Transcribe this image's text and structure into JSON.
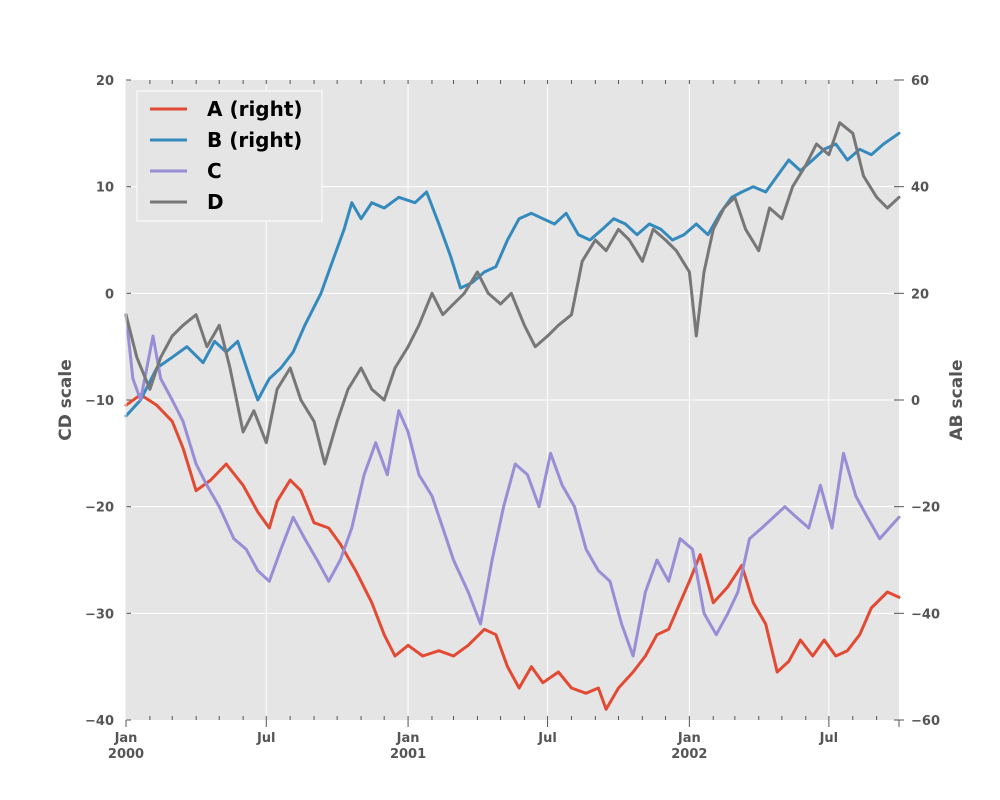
{
  "chart_data": {
    "type": "line",
    "x_start": "2000-01-01",
    "x_end": "2002-09-30",
    "xlim": [
      "2000-01-01",
      "2002-09-30"
    ],
    "x_ticks": [
      {
        "date": "2000-01-01",
        "line1": "Jan",
        "line2": "2000"
      },
      {
        "date": "2000-07-01",
        "line1": "Jul",
        "line2": ""
      },
      {
        "date": "2001-01-01",
        "line1": "Jan",
        "line2": "2001"
      },
      {
        "date": "2001-07-01",
        "line1": "Jul",
        "line2": ""
      },
      {
        "date": "2002-01-01",
        "line1": "Jan",
        "line2": "2002"
      },
      {
        "date": "2002-07-01",
        "line1": "Jul",
        "line2": ""
      }
    ],
    "y_left": {
      "label": "CD scale",
      "lim": [
        -40,
        20
      ],
      "ticks": [
        "−40",
        "−30",
        "−20",
        "−10",
        "0",
        "10",
        "20"
      ]
    },
    "y_right": {
      "label": "AB scale",
      "lim": [
        -60,
        60
      ],
      "ticks": [
        "−60",
        "−40",
        "−20",
        "0",
        "20",
        "40",
        "60"
      ]
    },
    "grid": true,
    "legend": {
      "placement": "top-left"
    },
    "series": [
      {
        "name": "A (right)",
        "axis": "right",
        "color": "#E24A33",
        "points": [
          [
            "2000-01-01",
            -1
          ],
          [
            "2000-01-20",
            1
          ],
          [
            "2000-02-10",
            -1
          ],
          [
            "2000-03-01",
            -4
          ],
          [
            "2000-03-15",
            -9
          ],
          [
            "2000-04-01",
            -17
          ],
          [
            "2000-04-20",
            -15
          ],
          [
            "2000-05-10",
            -12
          ],
          [
            "2000-06-01",
            -16
          ],
          [
            "2000-06-20",
            -21
          ],
          [
            "2000-07-05",
            -24
          ],
          [
            "2000-07-15",
            -19
          ],
          [
            "2000-08-01",
            -15
          ],
          [
            "2000-08-15",
            -17
          ],
          [
            "2000-09-01",
            -23
          ],
          [
            "2000-09-20",
            -24
          ],
          [
            "2000-10-05",
            -27
          ],
          [
            "2000-10-25",
            -32
          ],
          [
            "2000-11-15",
            -38
          ],
          [
            "2000-12-01",
            -44
          ],
          [
            "2000-12-15",
            -48
          ],
          [
            "2001-01-01",
            -46
          ],
          [
            "2001-01-20",
            -48
          ],
          [
            "2001-02-10",
            -47
          ],
          [
            "2001-03-01",
            -48
          ],
          [
            "2001-03-20",
            -46
          ],
          [
            "2001-04-10",
            -43
          ],
          [
            "2001-04-25",
            -44
          ],
          [
            "2001-05-10",
            -50
          ],
          [
            "2001-05-25",
            -54
          ],
          [
            "2001-06-10",
            -50
          ],
          [
            "2001-06-25",
            -53
          ],
          [
            "2001-07-15",
            -51
          ],
          [
            "2001-08-01",
            -54
          ],
          [
            "2001-08-20",
            -55
          ],
          [
            "2001-09-05",
            -54
          ],
          [
            "2001-09-15",
            -58
          ],
          [
            "2001-10-01",
            -54
          ],
          [
            "2001-10-20",
            -51
          ],
          [
            "2001-11-05",
            -48
          ],
          [
            "2001-11-20",
            -44
          ],
          [
            "2001-12-05",
            -43
          ],
          [
            "2001-12-20",
            -38
          ],
          [
            "2002-01-01",
            -34
          ],
          [
            "2002-01-15",
            -29
          ],
          [
            "2002-02-01",
            -38
          ],
          [
            "2002-02-20",
            -35
          ],
          [
            "2002-03-10",
            -31
          ],
          [
            "2002-03-25",
            -38
          ],
          [
            "2002-04-10",
            -42
          ],
          [
            "2002-04-25",
            -51
          ],
          [
            "2002-05-10",
            -49
          ],
          [
            "2002-05-25",
            -45
          ],
          [
            "2002-06-10",
            -48
          ],
          [
            "2002-06-25",
            -45
          ],
          [
            "2002-07-10",
            -48
          ],
          [
            "2002-07-25",
            -47
          ],
          [
            "2002-08-10",
            -44
          ],
          [
            "2002-08-25",
            -39
          ],
          [
            "2002-09-15",
            -36
          ],
          [
            "2002-09-30",
            -37
          ]
        ]
      },
      {
        "name": "B (right)",
        "axis": "right",
        "color": "#348ABD",
        "points": [
          [
            "2000-01-01",
            -3
          ],
          [
            "2000-01-20",
            0
          ],
          [
            "2000-02-10",
            6
          ],
          [
            "2000-03-01",
            8
          ],
          [
            "2000-03-20",
            10
          ],
          [
            "2000-04-10",
            7
          ],
          [
            "2000-04-25",
            11
          ],
          [
            "2000-05-10",
            9
          ],
          [
            "2000-05-25",
            11
          ],
          [
            "2000-06-10",
            4
          ],
          [
            "2000-06-20",
            0
          ],
          [
            "2000-07-05",
            4
          ],
          [
            "2000-07-20",
            6
          ],
          [
            "2000-08-05",
            9
          ],
          [
            "2000-08-20",
            14
          ],
          [
            "2000-09-10",
            20
          ],
          [
            "2000-09-25",
            26
          ],
          [
            "2000-10-10",
            32
          ],
          [
            "2000-10-20",
            37
          ],
          [
            "2000-11-01",
            34
          ],
          [
            "2000-11-15",
            37
          ],
          [
            "2000-12-01",
            36
          ],
          [
            "2000-12-20",
            38
          ],
          [
            "2001-01-10",
            37
          ],
          [
            "2001-01-25",
            39
          ],
          [
            "2001-02-10",
            33
          ],
          [
            "2001-02-25",
            27
          ],
          [
            "2001-03-10",
            21
          ],
          [
            "2001-03-25",
            22
          ],
          [
            "2001-04-10",
            24
          ],
          [
            "2001-04-25",
            25
          ],
          [
            "2001-05-10",
            30
          ],
          [
            "2001-05-25",
            34
          ],
          [
            "2001-06-10",
            35
          ],
          [
            "2001-06-25",
            34
          ],
          [
            "2001-07-10",
            33
          ],
          [
            "2001-07-25",
            35
          ],
          [
            "2001-08-10",
            31
          ],
          [
            "2001-08-25",
            30
          ],
          [
            "2001-09-10",
            32
          ],
          [
            "2001-09-25",
            34
          ],
          [
            "2001-10-10",
            33
          ],
          [
            "2001-10-25",
            31
          ],
          [
            "2001-11-10",
            33
          ],
          [
            "2001-11-25",
            32
          ],
          [
            "2001-12-10",
            30
          ],
          [
            "2001-12-25",
            31
          ],
          [
            "2002-01-10",
            33
          ],
          [
            "2002-01-25",
            31
          ],
          [
            "2002-02-10",
            35
          ],
          [
            "2002-02-25",
            38
          ],
          [
            "2002-03-10",
            39
          ],
          [
            "2002-03-25",
            40
          ],
          [
            "2002-04-10",
            39
          ],
          [
            "2002-04-25",
            42
          ],
          [
            "2002-05-10",
            45
          ],
          [
            "2002-05-25",
            43
          ],
          [
            "2002-06-10",
            45
          ],
          [
            "2002-06-25",
            47
          ],
          [
            "2002-07-10",
            48
          ],
          [
            "2002-07-25",
            45
          ],
          [
            "2002-08-10",
            47
          ],
          [
            "2002-08-25",
            46
          ],
          [
            "2002-09-10",
            48
          ],
          [
            "2002-09-30",
            50
          ]
        ]
      },
      {
        "name": "C",
        "axis": "left",
        "color": "#988ED5",
        "points": [
          [
            "2000-01-01",
            -2
          ],
          [
            "2000-01-10",
            -8
          ],
          [
            "2000-01-20",
            -10
          ],
          [
            "2000-02-05",
            -4
          ],
          [
            "2000-02-15",
            -8
          ],
          [
            "2000-03-01",
            -10
          ],
          [
            "2000-03-15",
            -12
          ],
          [
            "2000-04-01",
            -16
          ],
          [
            "2000-04-15",
            -18
          ],
          [
            "2000-05-01",
            -20
          ],
          [
            "2000-05-20",
            -23
          ],
          [
            "2000-06-05",
            -24
          ],
          [
            "2000-06-20",
            -26
          ],
          [
            "2000-07-05",
            -27
          ],
          [
            "2000-07-20",
            -24
          ],
          [
            "2000-08-05",
            -21
          ],
          [
            "2000-08-20",
            -23
          ],
          [
            "2000-09-05",
            -25
          ],
          [
            "2000-09-20",
            -27
          ],
          [
            "2000-10-05",
            -25
          ],
          [
            "2000-10-20",
            -22
          ],
          [
            "2000-11-05",
            -17
          ],
          [
            "2000-11-20",
            -14
          ],
          [
            "2000-12-05",
            -17
          ],
          [
            "2000-12-20",
            -11
          ],
          [
            "2001-01-01",
            -13
          ],
          [
            "2001-01-15",
            -17
          ],
          [
            "2001-02-01",
            -19
          ],
          [
            "2001-02-15",
            -22
          ],
          [
            "2001-03-01",
            -25
          ],
          [
            "2001-03-20",
            -28
          ],
          [
            "2001-04-05",
            -31
          ],
          [
            "2001-04-20",
            -25
          ],
          [
            "2001-05-05",
            -20
          ],
          [
            "2001-05-20",
            -16
          ],
          [
            "2001-06-05",
            -17
          ],
          [
            "2001-06-20",
            -20
          ],
          [
            "2001-07-05",
            -15
          ],
          [
            "2001-07-20",
            -18
          ],
          [
            "2001-08-05",
            -20
          ],
          [
            "2001-08-20",
            -24
          ],
          [
            "2001-09-05",
            -26
          ],
          [
            "2001-09-20",
            -27
          ],
          [
            "2001-10-05",
            -31
          ],
          [
            "2001-10-20",
            -34
          ],
          [
            "2001-11-05",
            -28
          ],
          [
            "2001-11-20",
            -25
          ],
          [
            "2001-12-05",
            -27
          ],
          [
            "2001-12-20",
            -23
          ],
          [
            "2002-01-05",
            -24
          ],
          [
            "2002-01-20",
            -30
          ],
          [
            "2002-02-05",
            -32
          ],
          [
            "2002-02-20",
            -30
          ],
          [
            "2002-03-05",
            -28
          ],
          [
            "2002-03-20",
            -23
          ],
          [
            "2002-04-05",
            -22
          ],
          [
            "2002-04-20",
            -21
          ],
          [
            "2002-05-05",
            -20
          ],
          [
            "2002-05-20",
            -21
          ],
          [
            "2002-06-05",
            -22
          ],
          [
            "2002-06-20",
            -18
          ],
          [
            "2002-07-05",
            -22
          ],
          [
            "2002-07-20",
            -15
          ],
          [
            "2002-08-05",
            -19
          ],
          [
            "2002-08-20",
            -21
          ],
          [
            "2002-09-05",
            -23
          ],
          [
            "2002-09-30",
            -21
          ]
        ]
      },
      {
        "name": "D",
        "axis": "left",
        "color": "#777777",
        "points": [
          [
            "2000-01-01",
            -2
          ],
          [
            "2000-01-15",
            -6
          ],
          [
            "2000-02-01",
            -9
          ],
          [
            "2000-02-15",
            -6
          ],
          [
            "2000-03-01",
            -4
          ],
          [
            "2000-03-15",
            -3
          ],
          [
            "2000-04-01",
            -2
          ],
          [
            "2000-04-15",
            -5
          ],
          [
            "2000-05-01",
            -3
          ],
          [
            "2000-05-15",
            -7
          ],
          [
            "2000-06-01",
            -13
          ],
          [
            "2000-06-15",
            -11
          ],
          [
            "2000-07-01",
            -14
          ],
          [
            "2000-07-15",
            -9
          ],
          [
            "2000-08-01",
            -7
          ],
          [
            "2000-08-15",
            -10
          ],
          [
            "2000-09-01",
            -12
          ],
          [
            "2000-09-15",
            -16
          ],
          [
            "2000-10-01",
            -12
          ],
          [
            "2000-10-15",
            -9
          ],
          [
            "2000-11-01",
            -7
          ],
          [
            "2000-11-15",
            -9
          ],
          [
            "2000-12-01",
            -10
          ],
          [
            "2000-12-15",
            -7
          ],
          [
            "2001-01-01",
            -5
          ],
          [
            "2001-01-15",
            -3
          ],
          [
            "2001-02-01",
            0
          ],
          [
            "2001-02-15",
            -2
          ],
          [
            "2001-03-01",
            -1
          ],
          [
            "2001-03-15",
            0
          ],
          [
            "2001-04-01",
            2
          ],
          [
            "2001-04-15",
            0
          ],
          [
            "2001-05-01",
            -1
          ],
          [
            "2001-05-15",
            0
          ],
          [
            "2001-06-01",
            -3
          ],
          [
            "2001-06-15",
            -5
          ],
          [
            "2001-07-01",
            -4
          ],
          [
            "2001-07-15",
            -3
          ],
          [
            "2001-08-01",
            -2
          ],
          [
            "2001-08-15",
            3
          ],
          [
            "2001-09-01",
            5
          ],
          [
            "2001-09-15",
            4
          ],
          [
            "2001-10-01",
            6
          ],
          [
            "2001-10-15",
            5
          ],
          [
            "2001-11-01",
            3
          ],
          [
            "2001-11-15",
            6
          ],
          [
            "2001-12-01",
            5
          ],
          [
            "2001-12-15",
            4
          ],
          [
            "2002-01-01",
            2
          ],
          [
            "2002-01-10",
            -4
          ],
          [
            "2002-01-20",
            2
          ],
          [
            "2002-02-01",
            6
          ],
          [
            "2002-02-15",
            8
          ],
          [
            "2002-03-01",
            9
          ],
          [
            "2002-03-15",
            6
          ],
          [
            "2002-04-01",
            4
          ],
          [
            "2002-04-15",
            8
          ],
          [
            "2002-05-01",
            7
          ],
          [
            "2002-05-15",
            10
          ],
          [
            "2002-06-01",
            12
          ],
          [
            "2002-06-15",
            14
          ],
          [
            "2002-07-01",
            13
          ],
          [
            "2002-07-15",
            16
          ],
          [
            "2002-08-01",
            15
          ],
          [
            "2002-08-15",
            11
          ],
          [
            "2002-09-01",
            9
          ],
          [
            "2002-09-15",
            8
          ],
          [
            "2002-09-30",
            9
          ]
        ]
      }
    ]
  }
}
